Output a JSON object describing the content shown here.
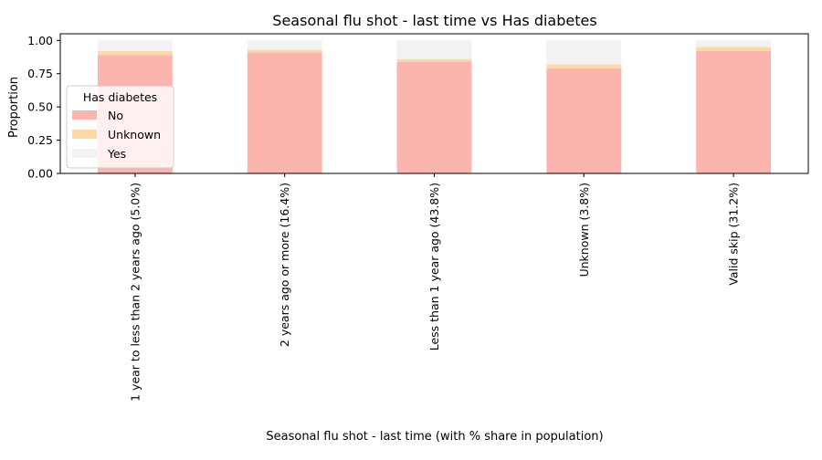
{
  "chart_data": {
    "type": "bar",
    "stacked": true,
    "title": "Seasonal flu shot - last time vs Has diabetes",
    "xlabel": "Seasonal flu shot - last time (with % share in population)",
    "ylabel": "Proportion",
    "ylim": [
      0,
      1.05
    ],
    "yticks": [
      "0.00",
      "0.25",
      "0.50",
      "0.75",
      "1.00"
    ],
    "grid": false,
    "legend": {
      "title": "Has diabetes",
      "placement": "center-left"
    },
    "categories": [
      "1 year to less than 2 years ago (5.0%)",
      "2 years ago or more (16.4%)",
      "Less than 1 year ago (43.8%)",
      "Unknown (3.8%)",
      "Valid skip (31.2%)"
    ],
    "series": [
      {
        "name": "No",
        "color": "#fbb4ae",
        "values": [
          0.89,
          0.91,
          0.84,
          0.79,
          0.92
        ]
      },
      {
        "name": "Unknown",
        "color": "#fed9a6",
        "values": [
          0.03,
          0.02,
          0.02,
          0.03,
          0.03
        ]
      },
      {
        "name": "Yes",
        "color": "#f2f2f2",
        "values": [
          0.08,
          0.07,
          0.14,
          0.18,
          0.05
        ]
      }
    ]
  }
}
